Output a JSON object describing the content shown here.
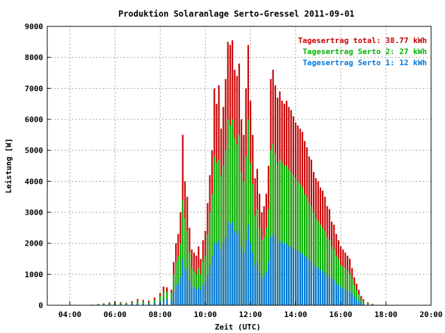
{
  "chart_data": {
    "type": "bar",
    "title": "Produktion Solaranlage Serto-Gressel 2011-09-01",
    "xlabel": "Zeit (UTC)",
    "ylabel": "Leistung [W]",
    "x_ticks": [
      "04:00",
      "06:00",
      "08:00",
      "10:00",
      "12:00",
      "14:00",
      "16:00",
      "18:00",
      "20:00"
    ],
    "y_ticks": [
      "0",
      "1000",
      "2000",
      "3000",
      "4000",
      "5000",
      "6000",
      "7000",
      "8000",
      "9000"
    ],
    "xlim_hours": [
      3,
      20
    ],
    "ylim": [
      0,
      9000
    ],
    "grid": true,
    "legend_position": "top-right",
    "legend": [
      {
        "label": "Tagesertrag total: 38.77 kWh",
        "color": "#c80000"
      },
      {
        "label": "Tagesertrag Serto 2: 27 kWh",
        "color": "#00b400"
      },
      {
        "label": "Tagesertrag Serto 1: 12 kWh",
        "color": "#0078dc"
      }
    ],
    "series": [
      {
        "name": "Tagesertrag total",
        "color": "#c80000",
        "points": [
          [
            5.0,
            20
          ],
          [
            5.25,
            40
          ],
          [
            5.5,
            60
          ],
          [
            5.75,
            90
          ],
          [
            6.0,
            120
          ],
          [
            6.25,
            100
          ],
          [
            6.5,
            80
          ],
          [
            6.75,
            130
          ],
          [
            7.0,
            200
          ],
          [
            7.25,
            170
          ],
          [
            7.5,
            150
          ],
          [
            7.75,
            250
          ],
          [
            8.0,
            400
          ],
          [
            8.15,
            600
          ],
          [
            8.3,
            580
          ],
          [
            8.5,
            500
          ],
          [
            8.6,
            1400
          ],
          [
            8.7,
            2000
          ],
          [
            8.8,
            2300
          ],
          [
            8.9,
            3000
          ],
          [
            9.0,
            5500
          ],
          [
            9.1,
            4000
          ],
          [
            9.2,
            3500
          ],
          [
            9.3,
            2500
          ],
          [
            9.4,
            1800
          ],
          [
            9.5,
            1700
          ],
          [
            9.6,
            1600
          ],
          [
            9.7,
            1900
          ],
          [
            9.8,
            1500
          ],
          [
            9.9,
            2100
          ],
          [
            10.0,
            2400
          ],
          [
            10.1,
            3300
          ],
          [
            10.2,
            4200
          ],
          [
            10.3,
            5000
          ],
          [
            10.4,
            7000
          ],
          [
            10.5,
            6500
          ],
          [
            10.6,
            7100
          ],
          [
            10.7,
            5700
          ],
          [
            10.8,
            6400
          ],
          [
            10.9,
            7300
          ],
          [
            11.0,
            8500
          ],
          [
            11.1,
            8400
          ],
          [
            11.2,
            8550
          ],
          [
            11.3,
            7600
          ],
          [
            11.4,
            7400
          ],
          [
            11.5,
            7800
          ],
          [
            11.6,
            6000
          ],
          [
            11.7,
            5500
          ],
          [
            11.8,
            7000
          ],
          [
            11.9,
            8400
          ],
          [
            12.0,
            6600
          ],
          [
            12.1,
            5500
          ],
          [
            12.2,
            4100
          ],
          [
            12.3,
            4400
          ],
          [
            12.4,
            3600
          ],
          [
            12.5,
            3000
          ],
          [
            12.6,
            3200
          ],
          [
            12.7,
            3600
          ],
          [
            12.8,
            4500
          ],
          [
            12.9,
            7300
          ],
          [
            13.0,
            7600
          ],
          [
            13.1,
            7100
          ],
          [
            13.2,
            6700
          ],
          [
            13.3,
            6900
          ],
          [
            13.4,
            6600
          ],
          [
            13.5,
            6500
          ],
          [
            13.6,
            6600
          ],
          [
            13.7,
            6400
          ],
          [
            13.8,
            6300
          ],
          [
            13.9,
            6100
          ],
          [
            14.0,
            5900
          ],
          [
            14.1,
            5800
          ],
          [
            14.2,
            5700
          ],
          [
            14.3,
            5600
          ],
          [
            14.4,
            5300
          ],
          [
            14.5,
            5100
          ],
          [
            14.6,
            4800
          ],
          [
            14.7,
            4700
          ],
          [
            14.8,
            4300
          ],
          [
            14.9,
            4100
          ],
          [
            15.0,
            4000
          ],
          [
            15.1,
            3800
          ],
          [
            15.2,
            3700
          ],
          [
            15.3,
            3500
          ],
          [
            15.4,
            3200
          ],
          [
            15.5,
            3100
          ],
          [
            15.6,
            2700
          ],
          [
            15.7,
            2600
          ],
          [
            15.8,
            2300
          ],
          [
            15.9,
            2100
          ],
          [
            16.0,
            1900
          ],
          [
            16.1,
            1800
          ],
          [
            16.2,
            1700
          ],
          [
            16.3,
            1600
          ],
          [
            16.4,
            1500
          ],
          [
            16.5,
            1200
          ],
          [
            16.6,
            900
          ],
          [
            16.7,
            700
          ],
          [
            16.8,
            500
          ],
          [
            16.9,
            300
          ],
          [
            17.0,
            200
          ],
          [
            17.2,
            100
          ],
          [
            17.4,
            50
          ]
        ]
      },
      {
        "name": "Tagesertrag Serto 2",
        "color": "#00b400",
        "points": [
          [
            5.0,
            15
          ],
          [
            5.25,
            30
          ],
          [
            5.5,
            45
          ],
          [
            5.75,
            60
          ],
          [
            6.0,
            80
          ],
          [
            6.25,
            70
          ],
          [
            6.5,
            60
          ],
          [
            6.75,
            90
          ],
          [
            7.0,
            150
          ],
          [
            7.25,
            120
          ],
          [
            7.5,
            100
          ],
          [
            7.75,
            180
          ],
          [
            8.0,
            300
          ],
          [
            8.15,
            450
          ],
          [
            8.3,
            430
          ],
          [
            8.5,
            400
          ],
          [
            8.6,
            1000
          ],
          [
            8.7,
            1400
          ],
          [
            8.8,
            1600
          ],
          [
            8.9,
            2000
          ],
          [
            9.0,
            3400
          ],
          [
            9.1,
            2800
          ],
          [
            9.2,
            2400
          ],
          [
            9.3,
            1700
          ],
          [
            9.4,
            1200
          ],
          [
            9.5,
            1100
          ],
          [
            9.6,
            1000
          ],
          [
            9.7,
            1200
          ],
          [
            9.8,
            1000
          ],
          [
            9.9,
            1400
          ],
          [
            10.0,
            1600
          ],
          [
            10.1,
            2300
          ],
          [
            10.2,
            3000
          ],
          [
            10.3,
            3600
          ],
          [
            10.4,
            4800
          ],
          [
            10.5,
            4600
          ],
          [
            10.6,
            4700
          ],
          [
            10.7,
            4200
          ],
          [
            10.8,
            4500
          ],
          [
            10.9,
            5000
          ],
          [
            11.0,
            6000
          ],
          [
            11.1,
            5800
          ],
          [
            11.2,
            6000
          ],
          [
            11.3,
            5400
          ],
          [
            11.4,
            5200
          ],
          [
            11.5,
            5500
          ],
          [
            11.6,
            4300
          ],
          [
            11.7,
            4000
          ],
          [
            11.8,
            4800
          ],
          [
            11.9,
            6000
          ],
          [
            12.0,
            4600
          ],
          [
            12.1,
            3900
          ],
          [
            12.2,
            2900
          ],
          [
            12.3,
            3100
          ],
          [
            12.4,
            2500
          ],
          [
            12.5,
            2100
          ],
          [
            12.6,
            2200
          ],
          [
            12.7,
            2500
          ],
          [
            12.8,
            3100
          ],
          [
            12.9,
            5000
          ],
          [
            13.0,
            5200
          ],
          [
            13.1,
            4900
          ],
          [
            13.2,
            4600
          ],
          [
            13.3,
            4700
          ],
          [
            13.4,
            4600
          ],
          [
            13.5,
            4500
          ],
          [
            13.6,
            4500
          ],
          [
            13.7,
            4400
          ],
          [
            13.8,
            4300
          ],
          [
            13.9,
            4200
          ],
          [
            14.0,
            4100
          ],
          [
            14.1,
            4000
          ],
          [
            14.2,
            3900
          ],
          [
            14.3,
            3800
          ],
          [
            14.4,
            3600
          ],
          [
            14.5,
            3500
          ],
          [
            14.6,
            3300
          ],
          [
            14.7,
            3200
          ],
          [
            14.8,
            3000
          ],
          [
            14.9,
            2800
          ],
          [
            15.0,
            2700
          ],
          [
            15.1,
            2600
          ],
          [
            15.2,
            2500
          ],
          [
            15.3,
            2400
          ],
          [
            15.4,
            2200
          ],
          [
            15.5,
            2100
          ],
          [
            15.6,
            1900
          ],
          [
            15.7,
            1800
          ],
          [
            15.8,
            1600
          ],
          [
            15.9,
            1500
          ],
          [
            16.0,
            1300
          ],
          [
            16.1,
            1250
          ],
          [
            16.2,
            1200
          ],
          [
            16.3,
            1100
          ],
          [
            16.4,
            1000
          ],
          [
            16.5,
            850
          ],
          [
            16.6,
            650
          ],
          [
            16.7,
            500
          ],
          [
            16.8,
            350
          ],
          [
            16.9,
            200
          ],
          [
            17.0,
            140
          ],
          [
            17.2,
            70
          ],
          [
            17.4,
            35
          ]
        ]
      },
      {
        "name": "Tagesertrag Serto 1",
        "color": "#0078dc",
        "points": [
          [
            5.0,
            8
          ],
          [
            5.25,
            15
          ],
          [
            5.5,
            20
          ],
          [
            5.75,
            30
          ],
          [
            6.0,
            40
          ],
          [
            6.25,
            35
          ],
          [
            6.5,
            30
          ],
          [
            6.75,
            45
          ],
          [
            7.0,
            60
          ],
          [
            7.25,
            55
          ],
          [
            7.5,
            50
          ],
          [
            7.75,
            80
          ],
          [
            8.0,
            120
          ],
          [
            8.15,
            200
          ],
          [
            8.3,
            190
          ],
          [
            8.5,
            180
          ],
          [
            8.6,
            450
          ],
          [
            8.7,
            650
          ],
          [
            8.8,
            700
          ],
          [
            8.9,
            900
          ],
          [
            9.0,
            1500
          ],
          [
            9.1,
            1200
          ],
          [
            9.2,
            1100
          ],
          [
            9.3,
            800
          ],
          [
            9.4,
            600
          ],
          [
            9.5,
            550
          ],
          [
            9.6,
            500
          ],
          [
            9.7,
            600
          ],
          [
            9.8,
            500
          ],
          [
            9.9,
            650
          ],
          [
            10.0,
            750
          ],
          [
            10.1,
            1000
          ],
          [
            10.2,
            1300
          ],
          [
            10.3,
            1600
          ],
          [
            10.4,
            2000
          ],
          [
            10.5,
            2000
          ],
          [
            10.6,
            2100
          ],
          [
            10.7,
            1800
          ],
          [
            10.8,
            2000
          ],
          [
            10.9,
            2200
          ],
          [
            11.0,
            2700
          ],
          [
            11.1,
            2600
          ],
          [
            11.2,
            2700
          ],
          [
            11.3,
            2400
          ],
          [
            11.4,
            2300
          ],
          [
            11.5,
            2400
          ],
          [
            11.6,
            1900
          ],
          [
            11.7,
            1700
          ],
          [
            11.8,
            2100
          ],
          [
            11.9,
            2600
          ],
          [
            12.0,
            2000
          ],
          [
            12.1,
            1700
          ],
          [
            12.2,
            1300
          ],
          [
            12.3,
            1400
          ],
          [
            12.4,
            1100
          ],
          [
            12.5,
            900
          ],
          [
            12.6,
            1000
          ],
          [
            12.7,
            1100
          ],
          [
            12.8,
            1400
          ],
          [
            12.9,
            2200
          ],
          [
            13.0,
            2300
          ],
          [
            13.1,
            2200
          ],
          [
            13.2,
            2000
          ],
          [
            13.3,
            2100
          ],
          [
            13.4,
            2000
          ],
          [
            13.5,
            2000
          ],
          [
            13.6,
            2000
          ],
          [
            13.7,
            1900
          ],
          [
            13.8,
            1900
          ],
          [
            13.9,
            1850
          ],
          [
            14.0,
            1800
          ],
          [
            14.1,
            1750
          ],
          [
            14.2,
            1700
          ],
          [
            14.3,
            1650
          ],
          [
            14.4,
            1600
          ],
          [
            14.5,
            1550
          ],
          [
            14.6,
            1450
          ],
          [
            14.7,
            1400
          ],
          [
            14.8,
            1300
          ],
          [
            14.9,
            1250
          ],
          [
            15.0,
            1200
          ],
          [
            15.1,
            1150
          ],
          [
            15.2,
            1100
          ],
          [
            15.3,
            1050
          ],
          [
            15.4,
            950
          ],
          [
            15.5,
            900
          ],
          [
            15.6,
            850
          ],
          [
            15.7,
            800
          ],
          [
            15.8,
            700
          ],
          [
            15.9,
            650
          ],
          [
            16.0,
            600
          ],
          [
            16.1,
            550
          ],
          [
            16.2,
            520
          ],
          [
            16.3,
            480
          ],
          [
            16.4,
            430
          ],
          [
            16.5,
            370
          ],
          [
            16.6,
            280
          ],
          [
            16.7,
            220
          ],
          [
            16.8,
            150
          ],
          [
            16.9,
            90
          ],
          [
            17.0,
            60
          ],
          [
            17.2,
            30
          ],
          [
            17.4,
            15
          ]
        ]
      }
    ]
  }
}
